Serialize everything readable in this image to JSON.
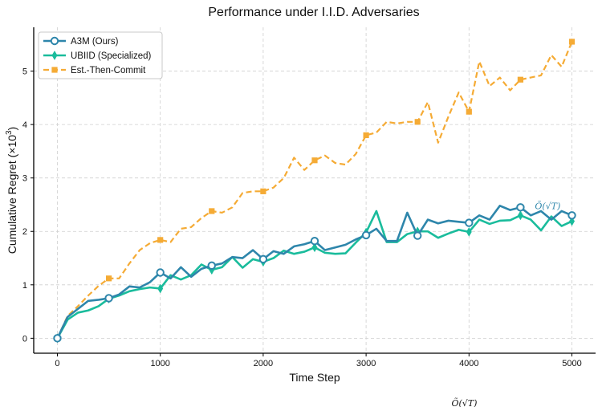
{
  "chart_data": {
    "type": "line",
    "title": "Performance under I.I.D. Adversaries",
    "xlabel": "Time Step",
    "ylabel": "Cumulative Regret (×10",
    "ylabel_sup": "3",
    "ylabel_close": ")",
    "xlim": [
      -230,
      5230
    ],
    "ylim": [
      -0.28,
      5.82
    ],
    "xticks": [
      0,
      1000,
      2000,
      3000,
      4000,
      5000
    ],
    "yticks": [
      0,
      1,
      2,
      3,
      4,
      5
    ],
    "grid": true,
    "legend_position": "top-left",
    "x": [
      0,
      100,
      200,
      300,
      400,
      500,
      600,
      700,
      800,
      900,
      1000,
      1100,
      1200,
      1300,
      1400,
      1500,
      1600,
      1700,
      1800,
      1900,
      2000,
      2100,
      2200,
      2300,
      2400,
      2500,
      2600,
      2700,
      2800,
      2900,
      3000,
      3100,
      3200,
      3300,
      3400,
      3500,
      3600,
      3700,
      3800,
      3900,
      4000,
      4100,
      4200,
      4300,
      4400,
      4500,
      4600,
      4700,
      4800,
      4900,
      5000
    ],
    "series": [
      {
        "name": "A3M (Ours)",
        "color": "#2e86ab",
        "dash": "solid",
        "marker": "circle-open",
        "marker_every": 5,
        "values": [
          0.0,
          0.4,
          0.55,
          0.7,
          0.72,
          0.75,
          0.82,
          0.97,
          0.95,
          1.05,
          1.23,
          1.12,
          1.33,
          1.15,
          1.3,
          1.36,
          1.4,
          1.52,
          1.5,
          1.65,
          1.48,
          1.63,
          1.58,
          1.72,
          1.76,
          1.82,
          1.65,
          1.7,
          1.75,
          1.85,
          1.93,
          2.05,
          1.82,
          1.82,
          2.35,
          1.92,
          2.22,
          2.15,
          2.2,
          2.18,
          2.16,
          2.3,
          2.22,
          2.48,
          2.4,
          2.45,
          2.3,
          2.38,
          2.22,
          2.38,
          2.3
        ]
      },
      {
        "name": "UBIID (Specialized)",
        "color": "#1abc9c",
        "dash": "solid",
        "marker": "thin-diamond",
        "marker_every": 5,
        "values": [
          0.0,
          0.35,
          0.48,
          0.52,
          0.6,
          0.74,
          0.8,
          0.88,
          0.92,
          0.95,
          0.93,
          1.18,
          1.1,
          1.18,
          1.38,
          1.28,
          1.33,
          1.52,
          1.32,
          1.48,
          1.43,
          1.5,
          1.64,
          1.58,
          1.62,
          1.7,
          1.6,
          1.58,
          1.59,
          1.79,
          1.98,
          2.38,
          1.8,
          1.8,
          1.95,
          2.0,
          2.0,
          1.88,
          1.96,
          2.03,
          1.99,
          2.22,
          2.14,
          2.2,
          2.21,
          2.3,
          2.22,
          2.02,
          2.28,
          2.1,
          2.19
        ]
      },
      {
        "name": "Est.-Then-Commit",
        "color": "#f5ab35",
        "dash": "dashed",
        "marker": "square",
        "marker_every": 5,
        "values": [
          0.0,
          0.42,
          0.6,
          0.8,
          0.98,
          1.12,
          1.12,
          1.4,
          1.65,
          1.78,
          1.84,
          1.8,
          2.05,
          2.08,
          2.25,
          2.38,
          2.35,
          2.45,
          2.72,
          2.75,
          2.75,
          2.82,
          3.0,
          3.38,
          3.15,
          3.33,
          3.42,
          3.28,
          3.25,
          3.45,
          3.8,
          3.85,
          4.05,
          4.02,
          4.05,
          4.05,
          4.42,
          3.66,
          4.15,
          4.6,
          4.24,
          5.18,
          4.72,
          4.88,
          4.64,
          4.84,
          4.88,
          4.92,
          5.3,
          5.08,
          5.55
        ]
      }
    ],
    "annotations": [
      {
        "text": "Õ(√T)",
        "x": 4640,
        "y": 2.42,
        "color": "#2e86ab"
      },
      {
        "text": "Õ(√T)",
        "x": 3830,
        "y": -1.27,
        "color": "#111111"
      }
    ]
  }
}
